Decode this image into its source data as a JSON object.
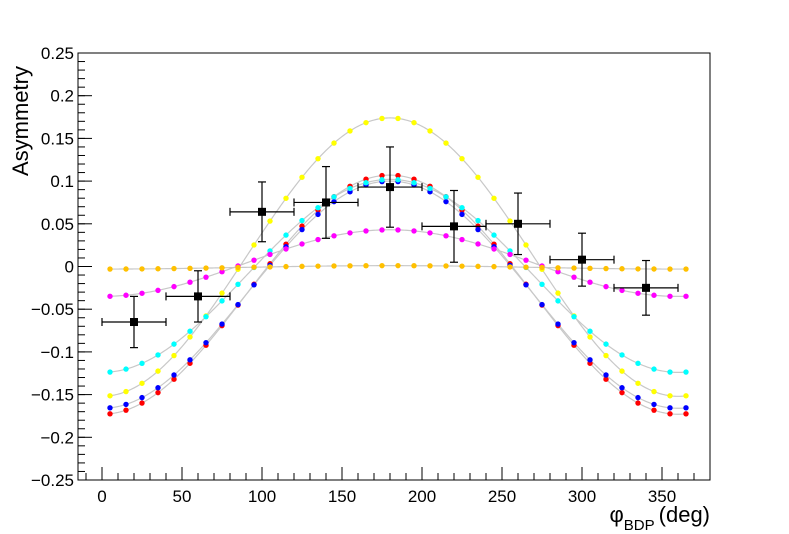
{
  "chart_data": {
    "type": "scatter",
    "xlabel": "φ",
    "xlabel_subscript": "BDP",
    "xlabel_unit": "(deg)",
    "ylabel": "Asymmetry",
    "xlim": [
      -15,
      380
    ],
    "ylim": [
      -0.25,
      0.25
    ],
    "grid": false,
    "x_ticks": [
      0,
      50,
      100,
      150,
      200,
      250,
      300,
      350
    ],
    "x_tick_labels": [
      "0",
      "50",
      "100",
      "150",
      "200",
      "250",
      "300",
      "350"
    ],
    "y_ticks": [
      -0.25,
      -0.2,
      -0.15,
      -0.1,
      -0.05,
      0,
      0.05,
      0.1,
      0.15,
      0.2,
      0.25
    ],
    "y_tick_labels": [
      "−0.25",
      "−0.2",
      "−0.15",
      "−0.1",
      "−0.05",
      "0",
      "0.05",
      "0.1",
      "0.15",
      "0.2",
      "0.25"
    ],
    "curve_x_range": [
      5,
      365
    ],
    "curve_step": 10,
    "model_curves": [
      {
        "color": "#ff0000",
        "offset": -0.033,
        "amplitude": 0.14,
        "harmonic_amp": 0.0,
        "harmonic_phase": 0
      },
      {
        "color": "#0000ff",
        "offset": -0.033,
        "amplitude": 0.133,
        "harmonic_amp": 0.0,
        "harmonic_phase": 0
      },
      {
        "color": "#ffff00",
        "offset": 0.011,
        "amplitude": 0.163,
        "harmonic_amp": 0.0,
        "harmonic_phase": 0
      },
      {
        "color": "#00ffff",
        "offset": -0.011,
        "amplitude": 0.113,
        "harmonic_amp": 0.0,
        "harmonic_phase": 0
      },
      {
        "color": "#ff00ff",
        "offset": 0.004,
        "amplitude": 0.039,
        "harmonic_amp": 0.0,
        "harmonic_phase": 0
      },
      {
        "color": "#ffc000",
        "offset": -0.001,
        "amplitude": 0.002,
        "harmonic_amp": 0.0,
        "harmonic_phase": 0
      }
    ],
    "measured": {
      "color": "#000000",
      "points": [
        {
          "x": 20,
          "y": -0.065,
          "x_err": 20,
          "y_err": 0.03
        },
        {
          "x": 60,
          "y": -0.035,
          "x_err": 20,
          "y_err": 0.03
        },
        {
          "x": 100,
          "y": 0.064,
          "x_err": 20,
          "y_err": 0.035
        },
        {
          "x": 140,
          "y": 0.075,
          "x_err": 20,
          "y_err": 0.042
        },
        {
          "x": 180,
          "y": 0.093,
          "x_err": 20,
          "y_err": 0.047
        },
        {
          "x": 220,
          "y": 0.047,
          "x_err": 20,
          "y_err": 0.042
        },
        {
          "x": 260,
          "y": 0.05,
          "x_err": 20,
          "y_err": 0.036
        },
        {
          "x": 300,
          "y": 0.008,
          "x_err": 20,
          "y_err": 0.031
        },
        {
          "x": 340,
          "y": -0.025,
          "x_err": 20,
          "y_err": 0.032
        }
      ]
    }
  }
}
